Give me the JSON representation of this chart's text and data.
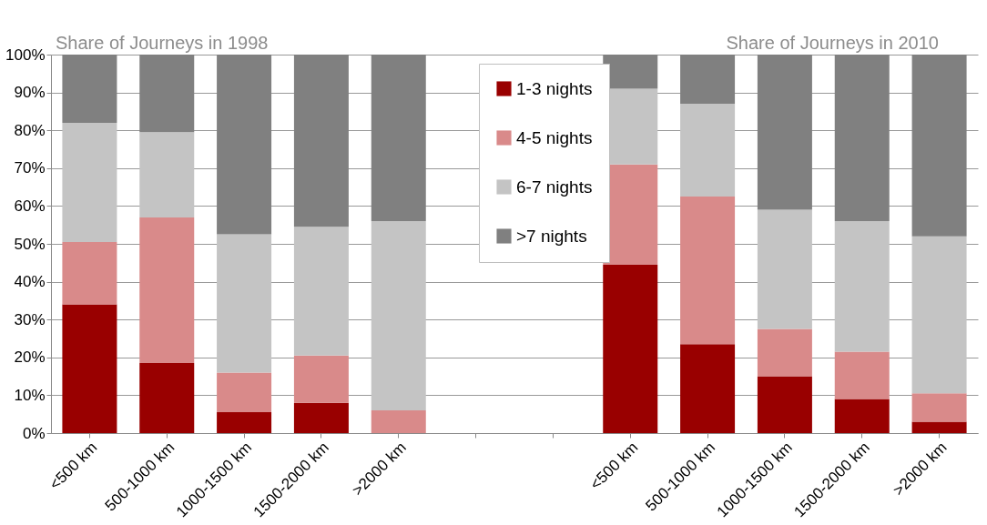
{
  "chart_data": {
    "type": "bar",
    "stacked": true,
    "categories": [
      "<500 km",
      "500-1000 km",
      "1000-1500 km",
      "1500-2000 km",
      ">2000 km",
      null,
      null,
      "<500 km",
      "500-1000 km",
      "1000-1500 km",
      "1500-2000 km",
      ">2000 km"
    ],
    "series": [
      {
        "name": "1-3 nights",
        "color": "#990000",
        "values": [
          34,
          18.5,
          5.5,
          8,
          0,
          null,
          null,
          44.5,
          23.5,
          15,
          9,
          3
        ]
      },
      {
        "name": "4-5 nights",
        "color": "#d98a8a",
        "values": [
          16.5,
          38.5,
          10.5,
          12.5,
          6,
          null,
          null,
          26.5,
          39,
          12.5,
          12.5,
          7.5
        ]
      },
      {
        "name": "6-7 nights",
        "color": "#c4c4c4",
        "values": [
          31.5,
          22.5,
          36.5,
          34,
          50,
          null,
          null,
          20,
          24.5,
          31.5,
          34.5,
          41.5
        ]
      },
      {
        "name": ">7 nights",
        "color": "#808080",
        "values": [
          18,
          20.5,
          47.5,
          45.5,
          44,
          null,
          null,
          9,
          13,
          41,
          44,
          48
        ]
      }
    ],
    "annotations": [
      "Share of Journeys in 1998",
      "Share of Journeys in 2010"
    ],
    "ylim": [
      0,
      100
    ],
    "yticks": [
      {
        "value": 0,
        "label": "0%"
      },
      {
        "value": 10,
        "label": "10%"
      },
      {
        "value": 20,
        "label": "20%"
      },
      {
        "value": 30,
        "label": "30%"
      },
      {
        "value": 40,
        "label": "40%"
      },
      {
        "value": 50,
        "label": "50%"
      },
      {
        "value": 60,
        "label": "60%"
      },
      {
        "value": 70,
        "label": "70%"
      },
      {
        "value": 80,
        "label": "80%"
      },
      {
        "value": 90,
        "label": "90%"
      },
      {
        "value": 100,
        "label": "100%"
      }
    ],
    "grid": "y",
    "legend": "top"
  }
}
